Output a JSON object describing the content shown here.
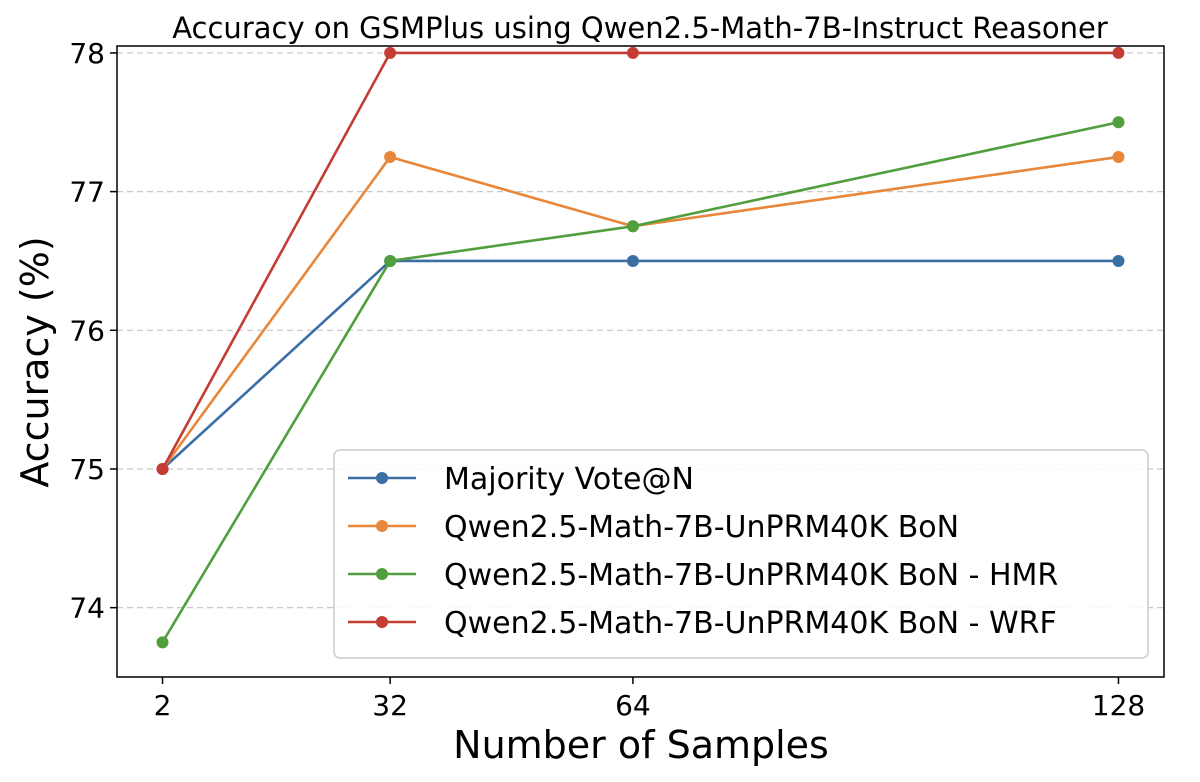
{
  "chart_data": {
    "type": "line",
    "title": "Accuracy on GSMPlus using Qwen2.5-Math-7B-Instruct Reasoner",
    "xlabel": "Number of Samples",
    "ylabel": "Accuracy (%)",
    "x": [
      2,
      32,
      64,
      128
    ],
    "x_tick_labels": [
      "2",
      "32",
      "64",
      "128"
    ],
    "y_ticks": [
      74,
      75,
      76,
      77,
      78
    ],
    "ylim": [
      73.5,
      78.05
    ],
    "grid": "horizontal dashed",
    "legend_position": "lower-right",
    "series": [
      {
        "name": "Majority Vote@N",
        "color": "#3a6ea5",
        "values": [
          75.0,
          76.5,
          76.5,
          76.5
        ]
      },
      {
        "name": "Qwen2.5-Math-7B-UnPRM40K BoN",
        "color": "#e8873a",
        "values": [
          75.0,
          77.25,
          76.75,
          77.25
        ]
      },
      {
        "name": "Qwen2.5-Math-7B-UnPRM40K BoN - HMR",
        "color": "#519e3e",
        "values": [
          73.75,
          76.5,
          76.75,
          77.5
        ]
      },
      {
        "name": "Qwen2.5-Math-7B-UnPRM40K BoN - WRF",
        "color": "#c33d33",
        "values": [
          75.0,
          78.0,
          78.0,
          78.0
        ]
      }
    ]
  }
}
